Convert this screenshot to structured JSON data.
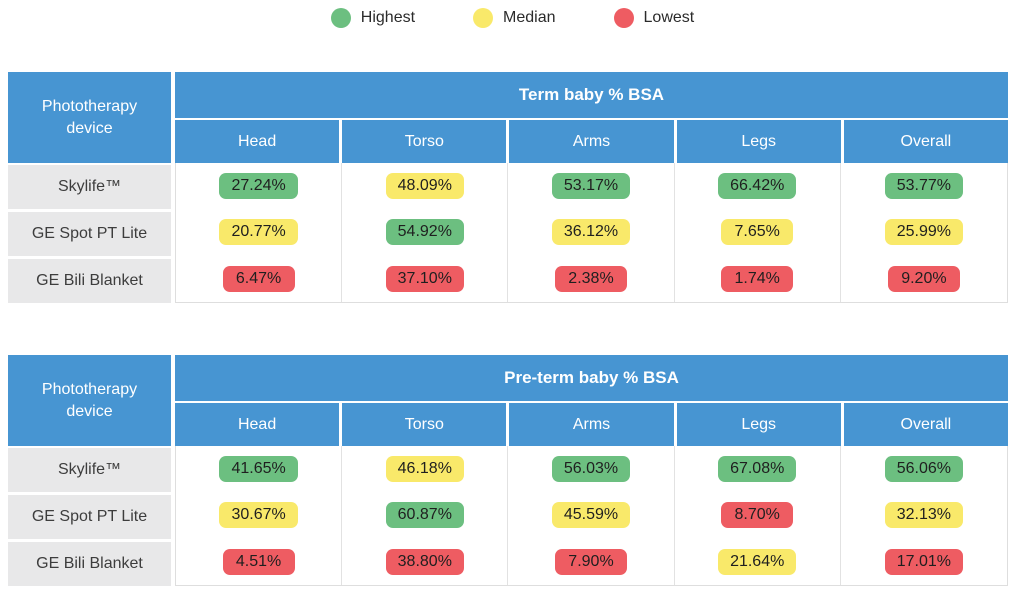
{
  "colors": {
    "header_blue": "#4795d2",
    "label_gray": "#e8e8e9",
    "highest_green": "#6cbf80",
    "median_yellow": "#f9e96a",
    "lowest_red": "#ee5c62"
  },
  "legend": {
    "items": [
      {
        "label": "Highest",
        "color": "#6cbf80"
      },
      {
        "label": "Median",
        "color": "#f9e96a"
      },
      {
        "label": "Lowest",
        "color": "#ee5c62"
      }
    ]
  },
  "row_header": "Phototherapy device",
  "columns": [
    "Head",
    "Torso",
    "Arms",
    "Legs",
    "Overall"
  ],
  "tables": [
    {
      "title": "Term baby % BSA",
      "rows": [
        {
          "device": "Skylife™",
          "cells": [
            {
              "value": "27.24%",
              "level": "highest",
              "color": "#6cbf80"
            },
            {
              "value": "48.09%",
              "level": "median",
              "color": "#f9e96a"
            },
            {
              "value": "53.17%",
              "level": "highest",
              "color": "#6cbf80"
            },
            {
              "value": "66.42%",
              "level": "highest",
              "color": "#6cbf80"
            },
            {
              "value": "53.77%",
              "level": "highest",
              "color": "#6cbf80"
            }
          ]
        },
        {
          "device": "GE Spot PT Lite",
          "cells": [
            {
              "value": "20.77%",
              "level": "median",
              "color": "#f9e96a"
            },
            {
              "value": "54.92%",
              "level": "highest",
              "color": "#6cbf80"
            },
            {
              "value": "36.12%",
              "level": "median",
              "color": "#f9e96a"
            },
            {
              "value": "7.65%",
              "level": "median",
              "color": "#f9e96a"
            },
            {
              "value": "25.99%",
              "level": "median",
              "color": "#f9e96a"
            }
          ]
        },
        {
          "device": "GE Bili Blanket",
          "cells": [
            {
              "value": "6.47%",
              "level": "lowest",
              "color": "#ee5c62"
            },
            {
              "value": "37.10%",
              "level": "lowest",
              "color": "#ee5c62"
            },
            {
              "value": "2.38%",
              "level": "lowest",
              "color": "#ee5c62"
            },
            {
              "value": "1.74%",
              "level": "lowest",
              "color": "#ee5c62"
            },
            {
              "value": "9.20%",
              "level": "lowest",
              "color": "#ee5c62"
            }
          ]
        }
      ]
    },
    {
      "title": "Pre-term baby % BSA",
      "rows": [
        {
          "device": "Skylife™",
          "cells": [
            {
              "value": "41.65%",
              "level": "highest",
              "color": "#6cbf80"
            },
            {
              "value": "46.18%",
              "level": "median",
              "color": "#f9e96a"
            },
            {
              "value": "56.03%",
              "level": "highest",
              "color": "#6cbf80"
            },
            {
              "value": "67.08%",
              "level": "highest",
              "color": "#6cbf80"
            },
            {
              "value": "56.06%",
              "level": "highest",
              "color": "#6cbf80"
            }
          ]
        },
        {
          "device": "GE Spot PT Lite",
          "cells": [
            {
              "value": "30.67%",
              "level": "median",
              "color": "#f9e96a"
            },
            {
              "value": "60.87%",
              "level": "highest",
              "color": "#6cbf80"
            },
            {
              "value": "45.59%",
              "level": "median",
              "color": "#f9e96a"
            },
            {
              "value": "8.70%",
              "level": "lowest",
              "color": "#ee5c62"
            },
            {
              "value": "32.13%",
              "level": "median",
              "color": "#f9e96a"
            }
          ]
        },
        {
          "device": "GE Bili Blanket",
          "cells": [
            {
              "value": "4.51%",
              "level": "lowest",
              "color": "#ee5c62"
            },
            {
              "value": "38.80%",
              "level": "lowest",
              "color": "#ee5c62"
            },
            {
              "value": "7.90%",
              "level": "lowest",
              "color": "#ee5c62"
            },
            {
              "value": "21.64%",
              "level": "median",
              "color": "#f9e96a"
            },
            {
              "value": "17.01%",
              "level": "lowest",
              "color": "#ee5c62"
            }
          ]
        }
      ]
    }
  ],
  "chart_data": [
    {
      "type": "table",
      "title": "Term baby % BSA",
      "categories": [
        "Head",
        "Torso",
        "Arms",
        "Legs",
        "Overall"
      ],
      "series": [
        {
          "name": "Skylife™",
          "values": [
            27.24,
            48.09,
            53.17,
            66.42,
            53.77
          ],
          "levels": [
            "highest",
            "median",
            "highest",
            "highest",
            "highest"
          ]
        },
        {
          "name": "GE Spot PT Lite",
          "values": [
            20.77,
            54.92,
            36.12,
            7.65,
            25.99
          ],
          "levels": [
            "median",
            "highest",
            "median",
            "median",
            "median"
          ]
        },
        {
          "name": "GE Bili Blanket",
          "values": [
            6.47,
            37.1,
            2.38,
            1.74,
            9.2
          ],
          "levels": [
            "lowest",
            "lowest",
            "lowest",
            "lowest",
            "lowest"
          ]
        }
      ],
      "legend": [
        "Highest",
        "Median",
        "Lowest"
      ],
      "legend_position": "top"
    },
    {
      "type": "table",
      "title": "Pre-term baby % BSA",
      "categories": [
        "Head",
        "Torso",
        "Arms",
        "Legs",
        "Overall"
      ],
      "series": [
        {
          "name": "Skylife™",
          "values": [
            41.65,
            46.18,
            56.03,
            67.08,
            56.06
          ],
          "levels": [
            "highest",
            "median",
            "highest",
            "highest",
            "highest"
          ]
        },
        {
          "name": "GE Spot PT Lite",
          "values": [
            30.67,
            60.87,
            45.59,
            8.7,
            32.13
          ],
          "levels": [
            "median",
            "highest",
            "median",
            "lowest",
            "median"
          ]
        },
        {
          "name": "GE Bili Blanket",
          "values": [
            4.51,
            38.8,
            7.9,
            21.64,
            17.01
          ],
          "levels": [
            "lowest",
            "lowest",
            "lowest",
            "median",
            "lowest"
          ]
        }
      ],
      "legend": [
        "Highest",
        "Median",
        "Lowest"
      ],
      "legend_position": "top"
    }
  ]
}
